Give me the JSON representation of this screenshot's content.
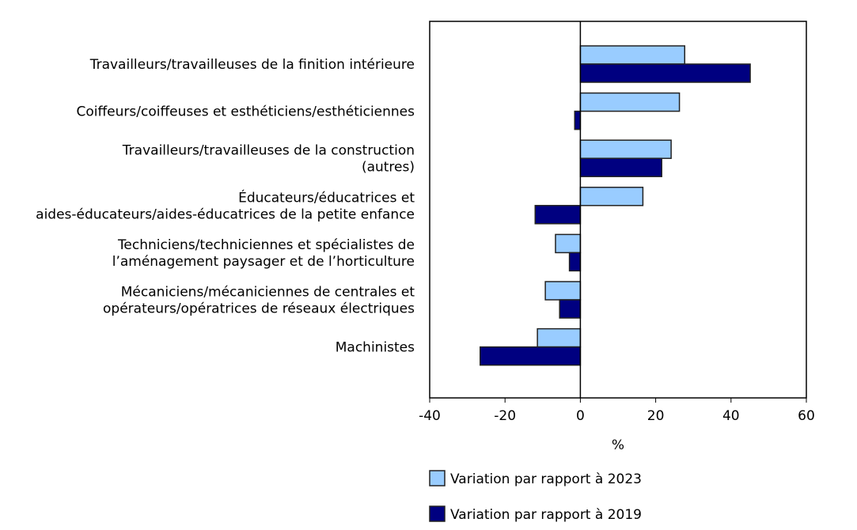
{
  "chart_data": {
    "type": "bar",
    "orientation": "horizontal",
    "categories": [
      [
        "Travailleurs/travailleuses de la finition intérieure"
      ],
      [
        "Coiffeurs/coiffeuses et esthéticiens/esthéticiennes"
      ],
      [
        "Travailleurs/travailleuses de la construction",
        "(autres)"
      ],
      [
        "Éducateurs/éducatrices et",
        "aides-éducateurs/aides-éducatrices de la petite enfance"
      ],
      [
        "Techniciens/techniciennes et spécialistes de",
        "l’aménagement paysager et de l’horticulture"
      ],
      [
        "Mécaniciens/mécaniciennes de centrales et",
        "opérateurs/opératrices de réseaux électriques"
      ],
      [
        "Machinistes"
      ]
    ],
    "series": [
      {
        "name": "Variation par rapport à 2023",
        "color": "#99ccff",
        "values": [
          27.7,
          26.3,
          24.1,
          16.6,
          -6.6,
          -9.3,
          -11.4
        ]
      },
      {
        "name": "Variation par rapport à 2019",
        "color": "#000080",
        "values": [
          45.1,
          -1.5,
          21.6,
          -12.0,
          -2.9,
          -5.5,
          -26.6
        ]
      }
    ],
    "xlabel": "%",
    "xlim": [
      -40,
      60
    ],
    "xticks": [
      -40,
      -20,
      0,
      20,
      40,
      60
    ],
    "grid": false,
    "legend_position": "bottom"
  }
}
